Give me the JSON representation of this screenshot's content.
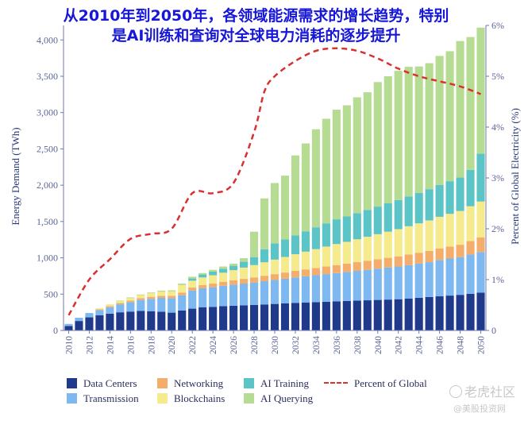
{
  "title": {
    "line1": "从2010年到2050年，各领域能源需求的增长趋势，特别",
    "line2": "是AI训练和查询对全球电力消耗的逐步提升"
  },
  "chart_data": {
    "type": "bar",
    "stacked": true,
    "xlabel": "",
    "ylabel": "Energy Demand (TWh)",
    "y2label": "Percent of Global Electricity (%)",
    "ylim": [
      0,
      4200
    ],
    "yticks": [
      0,
      500,
      1000,
      1500,
      2000,
      2500,
      3000,
      3500,
      4000
    ],
    "ytick_labels": [
      "0",
      "500",
      "1,000",
      "1,500",
      "2,000",
      "2,500",
      "3,000",
      "3,500",
      "4,000"
    ],
    "y2lim": [
      0,
      6
    ],
    "y2ticks": [
      0,
      1,
      2,
      3,
      4,
      5,
      6
    ],
    "y2tick_labels": [
      "0",
      "1%",
      "2%",
      "3%",
      "4%",
      "5%",
      "6%"
    ],
    "xtick_labels": [
      "2010",
      "2012",
      "2014",
      "2016",
      "2018",
      "2020",
      "2022",
      "2024",
      "2026",
      "2028",
      "2030",
      "2032",
      "2034",
      "2036",
      "2038",
      "2040",
      "2042",
      "2044",
      "2046",
      "2048",
      "2050"
    ],
    "categories": [
      2010,
      2011,
      2012,
      2013,
      2014,
      2015,
      2016,
      2017,
      2018,
      2019,
      2020,
      2021,
      2022,
      2023,
      2024,
      2025,
      2026,
      2027,
      2028,
      2029,
      2030,
      2031,
      2032,
      2033,
      2034,
      2035,
      2036,
      2037,
      2038,
      2039,
      2040,
      2041,
      2042,
      2043,
      2044,
      2045,
      2046,
      2047,
      2048,
      2049,
      2050
    ],
    "series": [
      {
        "name": "Data Centers",
        "color": "#1f3a8a",
        "values": [
          60,
          130,
          180,
          210,
          230,
          250,
          260,
          270,
          265,
          258,
          245,
          275,
          300,
          320,
          325,
          335,
          340,
          345,
          350,
          358,
          365,
          372,
          380,
          385,
          390,
          395,
          400,
          405,
          410,
          415,
          420,
          425,
          430,
          440,
          450,
          460,
          470,
          480,
          490,
          505,
          520
        ]
      },
      {
        "name": "Transmission",
        "color": "#7db8f0",
        "values": [
          30,
          45,
          60,
          70,
          90,
          110,
          130,
          150,
          170,
          190,
          200,
          210,
          250,
          260,
          270,
          280,
          290,
          300,
          310,
          320,
          330,
          340,
          350,
          360,
          370,
          380,
          390,
          400,
          410,
          420,
          430,
          440,
          450,
          460,
          470,
          480,
          500,
          510,
          520,
          540,
          560
        ]
      },
      {
        "name": "Networking",
        "color": "#f5ad6b",
        "values": [
          0,
          0,
          0,
          10,
          15,
          18,
          20,
          25,
          28,
          30,
          32,
          35,
          40,
          45,
          50,
          55,
          60,
          65,
          70,
          75,
          80,
          85,
          90,
          95,
          100,
          105,
          110,
          115,
          120,
          125,
          130,
          135,
          140,
          145,
          150,
          155,
          160,
          165,
          170,
          185,
          200
        ]
      },
      {
        "name": "Blockchains",
        "color": "#f5ea8c",
        "values": [
          0,
          0,
          0,
          15,
          25,
          30,
          35,
          40,
          50,
          55,
          60,
          105,
          95,
          105,
          115,
          125,
          140,
          155,
          170,
          185,
          200,
          215,
          230,
          245,
          260,
          275,
          290,
          300,
          315,
          330,
          345,
          360,
          375,
          390,
          405,
          420,
          435,
          450,
          465,
          480,
          495
        ]
      },
      {
        "name": "AI Training",
        "color": "#5bc4c6",
        "values": [
          0,
          0,
          0,
          0,
          0,
          0,
          0,
          0,
          0,
          0,
          0,
          0,
          30,
          40,
          50,
          55,
          60,
          80,
          110,
          180,
          225,
          240,
          260,
          280,
          300,
          320,
          340,
          350,
          360,
          370,
          380,
          390,
          400,
          410,
          420,
          430,
          440,
          450,
          460,
          500,
          660
        ]
      },
      {
        "name": "AI Querying",
        "color": "#b5dc92",
        "values": [
          0,
          0,
          0,
          0,
          0,
          5,
          10,
          10,
          10,
          15,
          15,
          20,
          25,
          20,
          25,
          30,
          30,
          50,
          350,
          700,
          830,
          880,
          1100,
          1210,
          1350,
          1440,
          1510,
          1530,
          1595,
          1620,
          1715,
          1750,
          1780,
          1785,
          1740,
          1735,
          1775,
          1790,
          1880,
          1830,
          1735
        ]
      },
      {
        "name": "Percent of Global",
        "color": "#d93030",
        "axis": "right",
        "style": "dashed",
        "x": [
          2010,
          2012,
          2014,
          2016,
          2018,
          2020,
          2022,
          2024,
          2026,
          2028,
          2029,
          2030,
          2032,
          2034,
          2036,
          2038,
          2040,
          2042,
          2044,
          2046,
          2048,
          2050
        ],
        "values": [
          0.3,
          1.0,
          1.4,
          1.8,
          1.9,
          2.0,
          2.7,
          2.7,
          2.9,
          3.9,
          4.7,
          5.0,
          5.3,
          5.5,
          5.55,
          5.5,
          5.35,
          5.15,
          5.0,
          4.9,
          4.8,
          4.65
        ]
      }
    ],
    "legend": {
      "placement": "bottom",
      "entries": [
        "Data Centers",
        "Networking",
        "AI Training",
        "Percent of Global",
        "Transmission",
        "Blockchains",
        "AI Querying"
      ]
    },
    "grid": false
  },
  "watermark": {
    "brand": "老虎社区",
    "account": "@美股投资网"
  }
}
